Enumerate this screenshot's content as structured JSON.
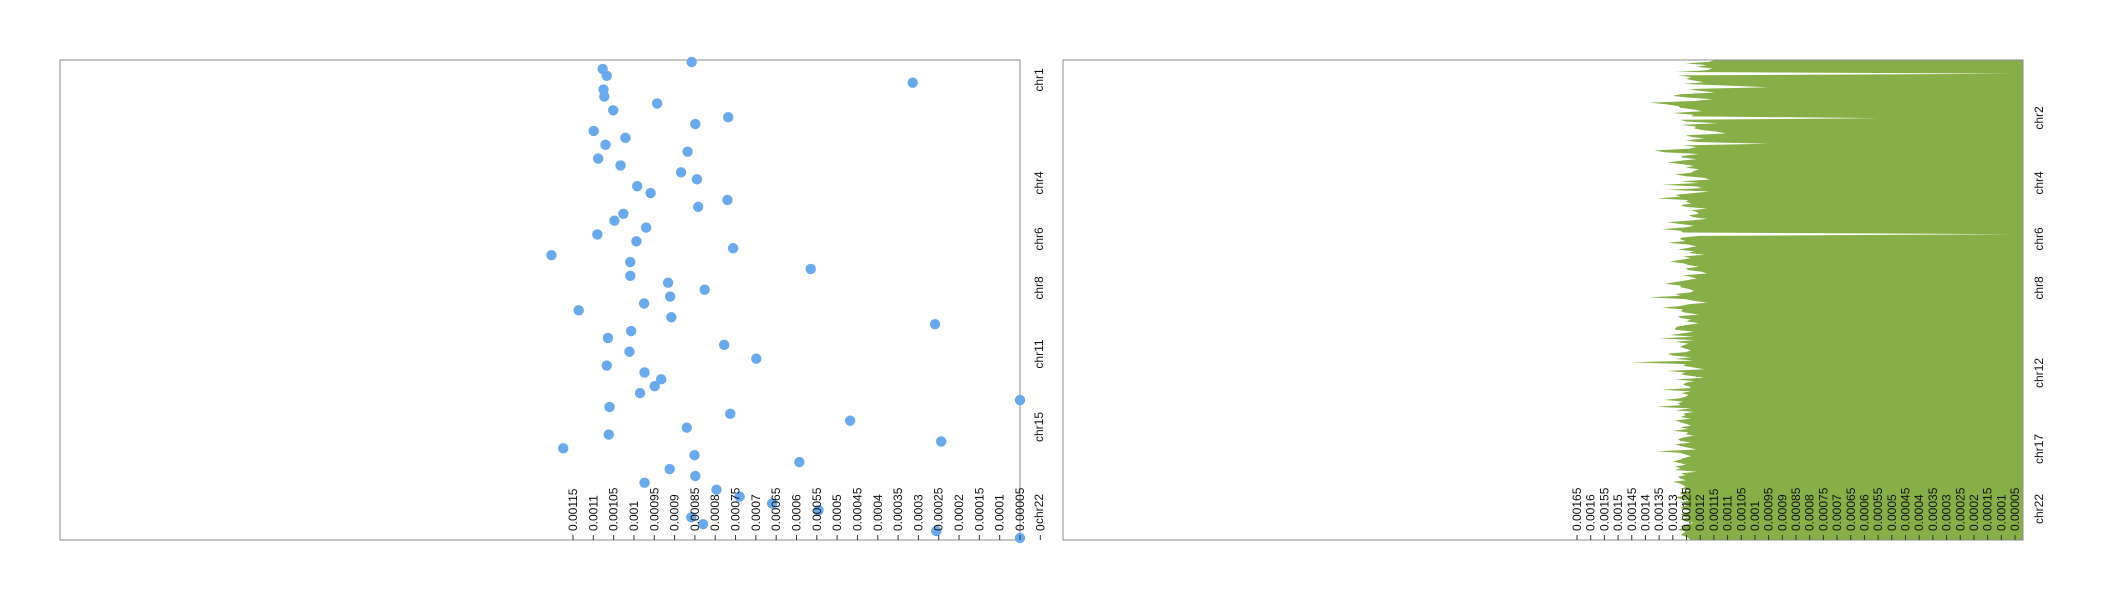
{
  "chart_data": [
    {
      "type": "scatter",
      "orientation": "horizontal-reversed",
      "title": "",
      "xlabel": "",
      "ylabel": "",
      "xlim": [
        0.0011,
        0.0
      ],
      "x_ticks": [
        "0.00115",
        "0.0011",
        "0.00105",
        "0.001",
        "0.00095",
        "0.0009",
        "0.00085",
        "0.0008",
        "0.00075",
        "0.0007",
        "0.00065",
        "0.0006",
        "0.00055",
        "0.0005",
        "0.00045",
        "0.0004",
        "0.00035",
        "0.0003",
        "0.00025",
        "0.0002",
        "0.00015",
        "0.0001",
        "0.00005",
        "0"
      ],
      "chromosome_labels": [
        "chr1",
        "chr4",
        "chr6",
        "chr8",
        "chr11",
        "chr15",
        "chr22"
      ],
      "point_color": "#6aaaea",
      "points": [
        {
          "row": 0,
          "value": 0.000808
        },
        {
          "row": 1,
          "value": 0.001027
        },
        {
          "row": 2,
          "value": 0.001017
        },
        {
          "row": 3,
          "value": 0.000264
        },
        {
          "row": 4,
          "value": 0.001025
        },
        {
          "row": 5,
          "value": 0.001023
        },
        {
          "row": 6,
          "value": 0.000893
        },
        {
          "row": 7,
          "value": 0.001001
        },
        {
          "row": 8,
          "value": 0.000718
        },
        {
          "row": 9,
          "value": 0.000799
        },
        {
          "row": 10,
          "value": 0.001049
        },
        {
          "row": 11,
          "value": 0.000971
        },
        {
          "row": 12,
          "value": 0.00102
        },
        {
          "row": 13,
          "value": 0.000818
        },
        {
          "row": 14,
          "value": 0.001038
        },
        {
          "row": 15,
          "value": 0.000983
        },
        {
          "row": 16,
          "value": 0.000834
        },
        {
          "row": 17,
          "value": 0.000795
        },
        {
          "row": 18,
          "value": 0.000942
        },
        {
          "row": 19,
          "value": 0.000909
        },
        {
          "row": 20,
          "value": 0.00072
        },
        {
          "row": 21,
          "value": 0.000792
        },
        {
          "row": 22,
          "value": 0.000976
        },
        {
          "row": 23,
          "value": 0.000998
        },
        {
          "row": 24,
          "value": 0.00092
        },
        {
          "row": 25,
          "value": 0.00104
        },
        {
          "row": 26,
          "value": 0.000944
        },
        {
          "row": 27,
          "value": 0.000706
        },
        {
          "row": 28,
          "value": 0.001153
        },
        {
          "row": 29,
          "value": 0.000959
        },
        {
          "row": 30,
          "value": 0.000515
        },
        {
          "row": 31,
          "value": 0.000959
        },
        {
          "row": 32,
          "value": 0.000866
        },
        {
          "row": 33,
          "value": 0.000776
        },
        {
          "row": 34,
          "value": 0.000861
        },
        {
          "row": 35,
          "value": 0.000925
        },
        {
          "row": 36,
          "value": 0.001086
        },
        {
          "row": 37,
          "value": 0.000858
        },
        {
          "row": 38,
          "value": 0.000209
        },
        {
          "row": 39,
          "value": 0.000957
        },
        {
          "row": 40,
          "value": 0.001014
        },
        {
          "row": 41,
          "value": 0.000728
        },
        {
          "row": 42,
          "value": 0.000961
        },
        {
          "row": 43,
          "value": 0.000649
        },
        {
          "row": 44,
          "value": 0.001017
        },
        {
          "row": 45,
          "value": 0.000924
        },
        {
          "row": 46,
          "value": 0.000883
        },
        {
          "row": 47,
          "value": 0.000899
        },
        {
          "row": 48,
          "value": 0.000935
        },
        {
          "row": 49,
          "value": 0.0
        },
        {
          "row": 50,
          "value": 0.00101
        },
        {
          "row": 51,
          "value": 0.000713
        },
        {
          "row": 52,
          "value": 0.000418
        },
        {
          "row": 53,
          "value": 0.00082
        },
        {
          "row": 54,
          "value": 0.001012
        },
        {
          "row": 55,
          "value": 0.000194
        },
        {
          "row": 56,
          "value": 0.001124
        },
        {
          "row": 57,
          "value": 0.000801
        },
        {
          "row": 58,
          "value": 0.000543
        },
        {
          "row": 59,
          "value": 0.000862
        },
        {
          "row": 60,
          "value": 0.000799
        },
        {
          "row": 61,
          "value": 0.000924
        },
        {
          "row": 62,
          "value": 0.000747
        },
        {
          "row": 63,
          "value": 0.00069
        },
        {
          "row": 64,
          "value": 0.00061
        },
        {
          "row": 65,
          "value": 0.000496
        },
        {
          "row": 66,
          "value": 0.000809
        },
        {
          "row": 67,
          "value": 0.00078
        },
        {
          "row": 68,
          "value": 0.000206
        },
        {
          "row": 69,
          "value": 0.0
        }
      ]
    },
    {
      "type": "area",
      "orientation": "horizontal-reversed",
      "title": "",
      "xlabel": "",
      "ylabel": "",
      "xlim": [
        0.00165,
        0.0
      ],
      "x_ticks": [
        "0.00165",
        "0.0016",
        "0.00155",
        "0.0015",
        "0.00145",
        "0.0014",
        "0.00135",
        "0.0013",
        "0.00125",
        "0.0012",
        "0.00115",
        "0.0011",
        "0.00105",
        "0.001",
        "0.00095",
        "0.0009",
        "0.00085",
        "0.0008",
        "0.00075",
        "0.0007",
        "0.00065",
        "0.0006",
        "0.00055",
        "0.0005",
        "0.00045",
        "0.0004",
        "0.00035",
        "0.0003",
        "0.00025",
        "0.0002",
        "0.00015",
        "0.0001",
        "0.00005"
      ],
      "chromosome_labels": [
        "chr2",
        "chr4",
        "chr6",
        "chr8",
        "chr12",
        "chr17",
        "chr22"
      ],
      "fill_color": "#86af48",
      "values": [
        0.00113,
        0.00115,
        0.00124,
        0.00116,
        0.0012,
        0.00114,
        0.00116,
        0.00128,
        0.0,
        0.00127,
        0.00122,
        0.00124,
        0.00121,
        0.00117,
        0.00125,
        0.00108,
        0.00093,
        0.00123,
        0.00119,
        0.00113,
        0.00126,
        0.00129,
        0.00123,
        0.00114,
        0.00121,
        0.00138,
        0.00131,
        0.00127,
        0.00126,
        0.00121,
        0.00118,
        0.00129,
        0.00121,
        0.00122,
        0.00051,
        0.00126,
        0.00124,
        0.00112,
        0.00126,
        0.0012,
        0.00121,
        0.00118,
        0.00112,
        0.00109,
        0.00124,
        0.00122,
        0.00117,
        0.00124,
        0.0012,
        0.00093,
        0.00125,
        0.0012,
        0.00123,
        0.00136,
        0.00132,
        0.00119,
        0.00125,
        0.00126,
        0.0012,
        0.00126,
        0.00131,
        0.00125,
        0.00121,
        0.00124,
        0.00119,
        0.00121,
        0.00122,
        0.00128,
        0.00124,
        0.00117,
        0.00115,
        0.00126,
        0.00119,
        0.00133,
        0.0012,
        0.00118,
        0.00131,
        0.00115,
        0.00122,
        0.00128,
        0.00126,
        0.00135,
        0.00123,
        0.00124,
        0.00122,
        0.00126,
        0.00124,
        0.00116,
        0.00122,
        0.0012,
        0.00119,
        0.00123,
        0.00121,
        0.00116,
        0.00123,
        0.00131,
        0.00126,
        0.00121,
        0.00124,
        0.00133,
        0.00126,
        0.00125,
        0.0,
        0.00119,
        0.00126,
        0.00126,
        0.00124,
        0.00131,
        0.00123,
        0.0012,
        0.00123,
        0.00127,
        0.00121,
        0.00123,
        0.00117,
        0.00125,
        0.00122,
        0.00126,
        0.0013,
        0.00125,
        0.00123,
        0.00119,
        0.00124,
        0.00123,
        0.00118,
        0.00116,
        0.00125,
        0.00122,
        0.0012,
        0.00124,
        0.00128,
        0.00132,
        0.00126,
        0.00126,
        0.00123,
        0.00121,
        0.00122,
        0.00128,
        0.00126,
        0.00138,
        0.00124,
        0.00121,
        0.00116,
        0.00123,
        0.00126,
        0.00133,
        0.00125,
        0.00126,
        0.00124,
        0.00119,
        0.00127,
        0.00126,
        0.00122,
        0.00124,
        0.00119,
        0.00123,
        0.00127,
        0.00128,
        0.00128,
        0.00121,
        0.00125,
        0.0013,
        0.00121,
        0.00134,
        0.00121,
        0.00128,
        0.00123,
        0.00125,
        0.00126,
        0.00124,
        0.00122,
        0.00124,
        0.00131,
        0.00129,
        0.00122,
        0.00128,
        0.00121,
        0.00145,
        0.00124,
        0.00125,
        0.00121,
        0.00117,
        0.00131,
        0.00124,
        0.00126,
        0.00122,
        0.00117,
        0.00128,
        0.00121,
        0.00124,
        0.00125,
        0.00123,
        0.00122,
        0.00133,
        0.00122,
        0.00126,
        0.00123,
        0.00124,
        0.00126,
        0.00132,
        0.00125,
        0.00127,
        0.00126,
        0.00135,
        0.00122,
        0.00128,
        0.00121,
        0.00125,
        0.00124,
        0.00126,
        0.00122,
        0.00128,
        0.00126,
        0.00124,
        0.00122,
        0.00126,
        0.00123,
        0.00129,
        0.00123,
        0.00124,
        0.00121,
        0.00125,
        0.00127,
        0.00126,
        0.00122,
        0.00128,
        0.00126,
        0.00123,
        0.0012,
        0.00135,
        0.00126,
        0.00124,
        0.00122,
        0.00125,
        0.00126,
        0.00129,
        0.00126,
        0.00124,
        0.00128,
        0.00126,
        0.00128,
        0.0012,
        0.00126,
        0.00124,
        0.00127,
        0.00126,
        0.00124,
        0.00129,
        0.00126,
        0.00125,
        0.00124,
        0.00126,
        0.00122,
        0.00126,
        0.00126,
        0.00124,
        0.00128,
        0.00126,
        0.00123,
        0.00126,
        0.00124,
        0.00124,
        0.00126,
        0.00125,
        0.00122,
        0.00124,
        0.00126,
        0.00125,
        0.00123,
        0.00126,
        0.00124,
        0.00121,
        0.00124,
        0.00126,
        0.00125,
        0.00127,
        0.00124,
        0.00125,
        0.00126,
        0.00124,
        0.00123,
        0.00122
      ]
    }
  ]
}
